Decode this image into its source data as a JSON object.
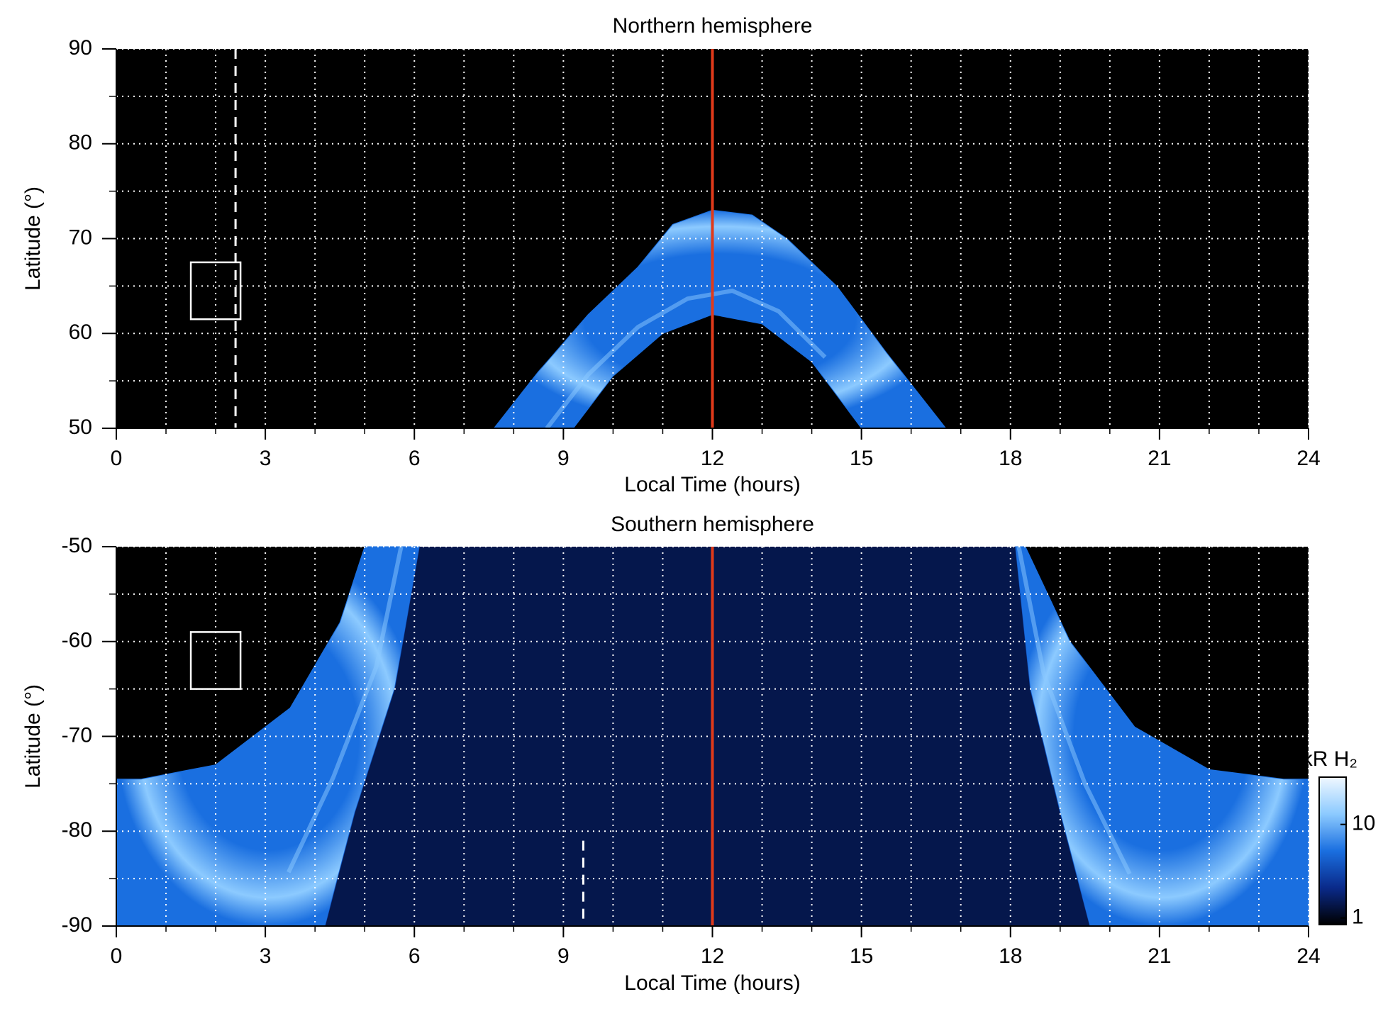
{
  "chart_data": [
    {
      "type": "heatmap",
      "title": "Northern hemisphere",
      "x_label": "Local Time (hours)",
      "y_label": "Latitude (°)",
      "xlim": [
        0,
        24
      ],
      "xticks": [
        0,
        3,
        6,
        9,
        12,
        15,
        18,
        21,
        24
      ],
      "ylim": [
        50,
        90
      ],
      "yticks": [
        50,
        60,
        70,
        80,
        90
      ],
      "grid": true,
      "grid_x_step": 1,
      "grid_y_step": 5,
      "bands": [
        {
          "outer": {
            "x": [
              7.6,
              8.5,
              9.5,
              10.5,
              11.2,
              12,
              12.8,
              13.5,
              14.5,
              15.5,
              16.7
            ],
            "y": [
              50,
              56,
              62,
              67,
              71.5,
              73,
              72.5,
              70,
              65,
              58,
              50
            ]
          },
          "inner": {
            "x": [
              9.2,
              10,
              11,
              12,
              13,
              14,
              15
            ],
            "y": [
              50,
              55.5,
              60,
              62,
              61,
              57,
              50
            ]
          }
        }
      ],
      "lines": [
        {
          "x": 12,
          "color": "#e03a1a",
          "style": "solid"
        },
        {
          "x": 2.4,
          "color": "#ffffff",
          "style": "dashed"
        }
      ],
      "boxes": [
        {
          "x": [
            1.5,
            2.5
          ],
          "y": [
            61.5,
            67.5
          ]
        }
      ]
    },
    {
      "type": "heatmap",
      "title": "Southern hemisphere",
      "x_label": "Local Time (hours)",
      "y_label": "Latitude (°)",
      "xlim": [
        0,
        24
      ],
      "xticks": [
        0,
        3,
        6,
        9,
        12,
        15,
        18,
        21,
        24
      ],
      "ylim": [
        -90,
        -50
      ],
      "yticks": [
        -90,
        -80,
        -70,
        -60,
        -50
      ],
      "grid": true,
      "grid_x_step": 1,
      "grid_y_step": 5,
      "bands": [
        {
          "outer": {
            "x": [
              5.0,
              4.5,
              3.5,
              2.0,
              0.5,
              0
            ],
            "y": [
              -50,
              -58,
              -67,
              -73,
              -74.5,
              -74.5
            ]
          },
          "inner": {
            "x": [
              6.1,
              5.6,
              4.8,
              4.2
            ],
            "y": [
              -50,
              -65,
              -78,
              -90
            ]
          }
        },
        {
          "outer": {
            "x": [
              18.3,
              19.2,
              20.5,
              22,
              23.5,
              24
            ],
            "y": [
              -50,
              -60,
              -69,
              -73.5,
              -74.5,
              -74.5
            ]
          },
          "inner": {
            "x": [
              18.1,
              18.4,
              19.0,
              19.6
            ],
            "y": [
              -50,
              -65,
              -78,
              -90
            ]
          }
        }
      ],
      "lines": [
        {
          "x": 12,
          "color": "#e03a1a",
          "style": "solid"
        },
        {
          "x": 9.4,
          "color": "#ffffff",
          "style": "dashed",
          "y_range": [
            -81,
            -90
          ]
        }
      ],
      "boxes": [
        {
          "x": [
            1.5,
            2.5
          ],
          "y": [
            -59,
            -65
          ]
        }
      ],
      "colorbar": {
        "label": "kR H₂",
        "lim": [
          0.85,
          32
        ],
        "ticks": [
          1,
          10
        ],
        "log": true,
        "colors": [
          "#000000",
          "#0a2a8a",
          "#1a6fe0",
          "#8ccaff",
          "#f0f8ff"
        ]
      }
    }
  ]
}
